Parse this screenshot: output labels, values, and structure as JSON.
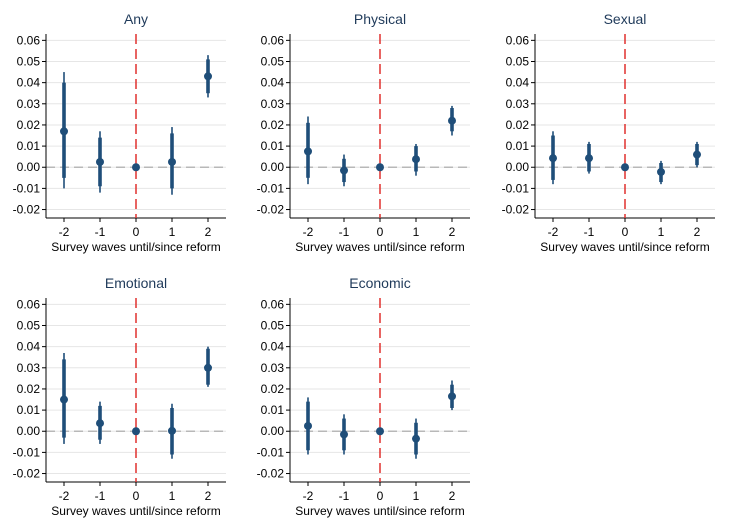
{
  "colors": {
    "point": "#1f4e79",
    "reform_line": "#e0312e",
    "zero_line": "#b8b8b8",
    "grid": "#e6e6e6"
  },
  "chart_data": [
    {
      "type": "scatter",
      "title": "Any",
      "xlabel": "Survey waves until/since reform",
      "ylabel": "",
      "x": [
        -2,
        -1,
        0,
        1,
        2
      ],
      "y": [
        0.017,
        0.0025,
        0.0,
        0.0025,
        0.043
      ],
      "ci95": [
        [
          -0.01,
          0.045
        ],
        [
          -0.012,
          0.017
        ],
        [
          0.0,
          0.0
        ],
        [
          -0.013,
          0.019
        ],
        [
          0.033,
          0.053
        ]
      ],
      "ci90": [
        [
          -0.005,
          0.04
        ],
        [
          -0.009,
          0.014
        ],
        [
          0.0,
          0.0
        ],
        [
          -0.01,
          0.016
        ],
        [
          0.035,
          0.051
        ]
      ],
      "xticks": [
        "-2",
        "-1",
        "0",
        "1",
        "2"
      ],
      "yticks": [
        "0.06",
        "0.05",
        "0.04",
        "0.03",
        "0.02",
        "0.01",
        "0.00",
        "-0.01",
        "-0.02"
      ],
      "xlim": [
        -2.5,
        2.5
      ],
      "ylim": [
        -0.024,
        0.063
      ],
      "reference_x": 0,
      "grid": true
    },
    {
      "type": "scatter",
      "title": "Physical",
      "xlabel": "Survey waves until/since reform",
      "ylabel": "",
      "x": [
        -2,
        -1,
        0,
        1,
        2
      ],
      "y": [
        0.0075,
        -0.0015,
        0.0,
        0.0038,
        0.022
      ],
      "ci95": [
        [
          -0.008,
          0.024
        ],
        [
          -0.009,
          0.006
        ],
        [
          0.0,
          0.0
        ],
        [
          -0.004,
          0.011
        ],
        [
          0.015,
          0.029
        ]
      ],
      "ci90": [
        [
          -0.005,
          0.021
        ],
        [
          -0.007,
          0.004
        ],
        [
          0.0,
          0.0
        ],
        [
          -0.002,
          0.01
        ],
        [
          0.017,
          0.028
        ]
      ],
      "xticks": [
        "-2",
        "-1",
        "0",
        "1",
        "2"
      ],
      "yticks": [
        "0.06",
        "0.05",
        "0.04",
        "0.03",
        "0.02",
        "0.01",
        "0.00",
        "-0.01",
        "-0.02"
      ],
      "xlim": [
        -2.5,
        2.5
      ],
      "ylim": [
        -0.024,
        0.063
      ],
      "reference_x": 0,
      "grid": true
    },
    {
      "type": "scatter",
      "title": "Sexual",
      "xlabel": "Survey waves until/since reform",
      "ylabel": "",
      "x": [
        -2,
        -1,
        0,
        1,
        2
      ],
      "y": [
        0.0043,
        0.0043,
        0.0,
        -0.0022,
        0.006
      ],
      "ci95": [
        [
          -0.008,
          0.017
        ],
        [
          -0.003,
          0.012
        ],
        [
          0.0,
          0.0
        ],
        [
          -0.008,
          0.003
        ],
        [
          0.0,
          0.012
        ]
      ],
      "ci90": [
        [
          -0.006,
          0.015
        ],
        [
          -0.002,
          0.011
        ],
        [
          0.0,
          0.0
        ],
        [
          -0.007,
          0.002
        ],
        [
          0.001,
          0.011
        ]
      ],
      "xticks": [
        "-2",
        "-1",
        "0",
        "1",
        "2"
      ],
      "yticks": [
        "0.06",
        "0.05",
        "0.04",
        "0.03",
        "0.02",
        "0.01",
        "0.00",
        "-0.01",
        "-0.02"
      ],
      "xlim": [
        -2.5,
        2.5
      ],
      "ylim": [
        -0.024,
        0.063
      ],
      "reference_x": 0,
      "grid": true
    },
    {
      "type": "scatter",
      "title": "Emotional",
      "xlabel": "Survey waves until/since reform",
      "ylabel": "",
      "x": [
        -2,
        -1,
        0,
        1,
        2
      ],
      "y": [
        0.015,
        0.0038,
        0.0,
        0.0002,
        0.03
      ],
      "ci95": [
        [
          -0.006,
          0.037
        ],
        [
          -0.006,
          0.014
        ],
        [
          0.0,
          0.0
        ],
        [
          -0.013,
          0.013
        ],
        [
          0.021,
          0.04
        ]
      ],
      "ci90": [
        [
          -0.003,
          0.034
        ],
        [
          -0.004,
          0.012
        ],
        [
          0.0,
          0.0
        ],
        [
          -0.011,
          0.011
        ],
        [
          0.022,
          0.039
        ]
      ],
      "xticks": [
        "-2",
        "-1",
        "0",
        "1",
        "2"
      ],
      "yticks": [
        "0.06",
        "0.05",
        "0.04",
        "0.03",
        "0.02",
        "0.01",
        "0.00",
        "-0.01",
        "-0.02"
      ],
      "xlim": [
        -2.5,
        2.5
      ],
      "ylim": [
        -0.024,
        0.063
      ],
      "reference_x": 0,
      "grid": true
    },
    {
      "type": "scatter",
      "title": "Economic",
      "xlabel": "Survey waves until/since reform",
      "ylabel": "",
      "x": [
        -2,
        -1,
        0,
        1,
        2
      ],
      "y": [
        0.0025,
        -0.0015,
        0.0,
        -0.0035,
        0.0165
      ],
      "ci95": [
        [
          -0.011,
          0.016
        ],
        [
          -0.011,
          0.008
        ],
        [
          0.0,
          0.0
        ],
        [
          -0.013,
          0.006
        ],
        [
          0.01,
          0.024
        ]
      ],
      "ci90": [
        [
          -0.009,
          0.014
        ],
        [
          -0.009,
          0.006
        ],
        [
          0.0,
          0.0
        ],
        [
          -0.011,
          0.004
        ],
        [
          0.011,
          0.022
        ]
      ],
      "xticks": [
        "-2",
        "-1",
        "0",
        "1",
        "2"
      ],
      "yticks": [
        "0.06",
        "0.05",
        "0.04",
        "0.03",
        "0.02",
        "0.01",
        "0.00",
        "-0.01",
        "-0.02"
      ],
      "xlim": [
        -2.5,
        2.5
      ],
      "ylim": [
        -0.024,
        0.063
      ],
      "reference_x": 0,
      "grid": true
    }
  ]
}
